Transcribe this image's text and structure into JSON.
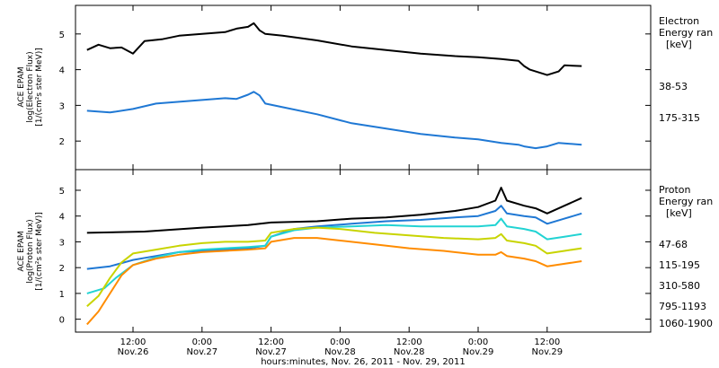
{
  "chart_data": [
    {
      "type": "line",
      "instrument_label": "ACE EPAM",
      "ylabel_line1": "log(Electron Flux)",
      "ylabel_line2": "[1/(cm²s ster MeV)]",
      "ylim": [
        1.2,
        5.8
      ],
      "yticks": [
        "2",
        "3",
        "4",
        "5"
      ],
      "legend_title": [
        "Electron",
        "Energy ran",
        "[keV]"
      ],
      "series": [
        {
          "name": "38-53",
          "color": "#000000",
          "points": [
            [
              -20,
              4.55
            ],
            [
              -18,
              4.7
            ],
            [
              -16,
              4.6
            ],
            [
              -14,
              4.62
            ],
            [
              -12,
              4.45
            ],
            [
              -10,
              4.8
            ],
            [
              -7,
              4.85
            ],
            [
              -4,
              4.95
            ],
            [
              0,
              5.0
            ],
            [
              4,
              5.05
            ],
            [
              6,
              5.15
            ],
            [
              8,
              5.2
            ],
            [
              9,
              5.3
            ],
            [
              10,
              5.1
            ],
            [
              11,
              5.0
            ],
            [
              14,
              4.95
            ],
            [
              20,
              4.82
            ],
            [
              26,
              4.65
            ],
            [
              32,
              4.55
            ],
            [
              38,
              4.45
            ],
            [
              44,
              4.38
            ],
            [
              48,
              4.35
            ],
            [
              52,
              4.3
            ],
            [
              55,
              4.25
            ],
            [
              56,
              4.1
            ],
            [
              57,
              4.0
            ],
            [
              60,
              3.85
            ],
            [
              62,
              3.95
            ],
            [
              63,
              4.12
            ],
            [
              66,
              4.1
            ]
          ]
        },
        {
          "name": "175-315",
          "color": "#1f78d4",
          "points": [
            [
              -20,
              2.85
            ],
            [
              -16,
              2.8
            ],
            [
              -12,
              2.9
            ],
            [
              -8,
              3.05
            ],
            [
              -4,
              3.1
            ],
            [
              0,
              3.15
            ],
            [
              4,
              3.2
            ],
            [
              6,
              3.18
            ],
            [
              8,
              3.3
            ],
            [
              9,
              3.38
            ],
            [
              10,
              3.28
            ],
            [
              11,
              3.05
            ],
            [
              14,
              2.95
            ],
            [
              20,
              2.75
            ],
            [
              26,
              2.5
            ],
            [
              32,
              2.35
            ],
            [
              38,
              2.2
            ],
            [
              44,
              2.1
            ],
            [
              48,
              2.05
            ],
            [
              52,
              1.95
            ],
            [
              55,
              1.9
            ],
            [
              56,
              1.85
            ],
            [
              58,
              1.8
            ],
            [
              60,
              1.85
            ],
            [
              62,
              1.95
            ],
            [
              66,
              1.9
            ]
          ]
        }
      ]
    },
    {
      "type": "line",
      "instrument_label": "ACE EPAM",
      "ylabel_line1": "log(Proton Flux)",
      "ylabel_line2": "[1/(cm²s ster MeV)]",
      "ylim": [
        -0.5,
        5.8
      ],
      "yticks": [
        "0",
        "1",
        "2",
        "3",
        "4",
        "5"
      ],
      "legend_title": [
        "Proton",
        "Energy ran",
        "[keV]"
      ],
      "series": [
        {
          "name": "47-68",
          "color": "#000000",
          "points": [
            [
              -20,
              3.35
            ],
            [
              -10,
              3.4
            ],
            [
              0,
              3.55
            ],
            [
              8,
              3.65
            ],
            [
              12,
              3.75
            ],
            [
              20,
              3.8
            ],
            [
              26,
              3.9
            ],
            [
              32,
              3.95
            ],
            [
              38,
              4.05
            ],
            [
              44,
              4.2
            ],
            [
              48,
              4.35
            ],
            [
              51,
              4.6
            ],
            [
              52,
              5.1
            ],
            [
              53,
              4.6
            ],
            [
              56,
              4.4
            ],
            [
              58,
              4.3
            ],
            [
              60,
              4.1
            ],
            [
              63,
              4.4
            ],
            [
              66,
              4.7
            ]
          ]
        },
        {
          "name": "115-195",
          "color": "#1f78d4",
          "points": [
            [
              -20,
              1.95
            ],
            [
              -16,
              2.05
            ],
            [
              -12,
              2.3
            ],
            [
              -8,
              2.45
            ],
            [
              -4,
              2.6
            ],
            [
              0,
              2.65
            ],
            [
              4,
              2.7
            ],
            [
              8,
              2.75
            ],
            [
              11,
              2.85
            ],
            [
              12,
              3.2
            ],
            [
              16,
              3.5
            ],
            [
              20,
              3.6
            ],
            [
              26,
              3.7
            ],
            [
              32,
              3.8
            ],
            [
              38,
              3.85
            ],
            [
              44,
              3.95
            ],
            [
              48,
              4.0
            ],
            [
              51,
              4.2
            ],
            [
              52,
              4.4
            ],
            [
              53,
              4.1
            ],
            [
              56,
              4.0
            ],
            [
              58,
              3.95
            ],
            [
              60,
              3.7
            ],
            [
              63,
              3.9
            ],
            [
              66,
              4.1
            ]
          ]
        },
        {
          "name": "310-580",
          "color": "#22d3d3",
          "points": [
            [
              -20,
              1.0
            ],
            [
              -17,
              1.2
            ],
            [
              -15,
              1.6
            ],
            [
              -12,
              2.1
            ],
            [
              -8,
              2.4
            ],
            [
              -4,
              2.6
            ],
            [
              0,
              2.7
            ],
            [
              4,
              2.75
            ],
            [
              8,
              2.8
            ],
            [
              11,
              2.85
            ],
            [
              12,
              3.2
            ],
            [
              16,
              3.45
            ],
            [
              20,
              3.55
            ],
            [
              26,
              3.6
            ],
            [
              32,
              3.65
            ],
            [
              38,
              3.6
            ],
            [
              44,
              3.6
            ],
            [
              48,
              3.6
            ],
            [
              51,
              3.65
            ],
            [
              52,
              3.9
            ],
            [
              53,
              3.6
            ],
            [
              56,
              3.5
            ],
            [
              58,
              3.4
            ],
            [
              60,
              3.1
            ],
            [
              63,
              3.2
            ],
            [
              66,
              3.3
            ]
          ]
        },
        {
          "name": "795-1193",
          "color": "#c8d400",
          "points": [
            [
              -20,
              0.5
            ],
            [
              -18,
              0.9
            ],
            [
              -16,
              1.6
            ],
            [
              -14,
              2.2
            ],
            [
              -12,
              2.55
            ],
            [
              -8,
              2.7
            ],
            [
              -4,
              2.85
            ],
            [
              0,
              2.95
            ],
            [
              4,
              3.0
            ],
            [
              8,
              3.0
            ],
            [
              11,
              3.05
            ],
            [
              12,
              3.35
            ],
            [
              16,
              3.5
            ],
            [
              20,
              3.55
            ],
            [
              24,
              3.5
            ],
            [
              30,
              3.35
            ],
            [
              36,
              3.25
            ],
            [
              42,
              3.15
            ],
            [
              48,
              3.1
            ],
            [
              51,
              3.15
            ],
            [
              52,
              3.3
            ],
            [
              53,
              3.05
            ],
            [
              56,
              2.95
            ],
            [
              58,
              2.85
            ],
            [
              60,
              2.55
            ],
            [
              63,
              2.65
            ],
            [
              66,
              2.75
            ]
          ]
        },
        {
          "name": "1060-1900",
          "color": "#ff8c00",
          "points": [
            [
              -20,
              -0.2
            ],
            [
              -18,
              0.3
            ],
            [
              -16,
              1.0
            ],
            [
              -14,
              1.7
            ],
            [
              -12,
              2.1
            ],
            [
              -8,
              2.35
            ],
            [
              -4,
              2.5
            ],
            [
              0,
              2.6
            ],
            [
              4,
              2.65
            ],
            [
              8,
              2.7
            ],
            [
              11,
              2.75
            ],
            [
              12,
              3.0
            ],
            [
              16,
              3.15
            ],
            [
              20,
              3.15
            ],
            [
              24,
              3.05
            ],
            [
              30,
              2.9
            ],
            [
              36,
              2.75
            ],
            [
              42,
              2.65
            ],
            [
              48,
              2.5
            ],
            [
              51,
              2.5
            ],
            [
              52,
              2.6
            ],
            [
              53,
              2.45
            ],
            [
              56,
              2.35
            ],
            [
              58,
              2.25
            ],
            [
              60,
              2.05
            ],
            [
              63,
              2.15
            ],
            [
              66,
              2.25
            ]
          ]
        }
      ]
    }
  ],
  "x_axis": {
    "xlim": [
      -22,
      78
    ],
    "ticks": [
      {
        "x": -12,
        "time": "12:00",
        "date": "Nov.26"
      },
      {
        "x": 0,
        "time": "0:00",
        "date": "Nov.27"
      },
      {
        "x": 12,
        "time": "12:00",
        "date": "Nov.27"
      },
      {
        "x": 24,
        "time": "0:00",
        "date": "Nov.28"
      },
      {
        "x": 36,
        "time": "12:00",
        "date": "Nov.28"
      },
      {
        "x": 48,
        "time": "0:00",
        "date": "Nov.29"
      },
      {
        "x": 60,
        "time": "12:00",
        "date": "Nov.29"
      }
    ],
    "label": "hours:minutes, Nov. 26, 2011 - Nov. 29, 2011"
  }
}
